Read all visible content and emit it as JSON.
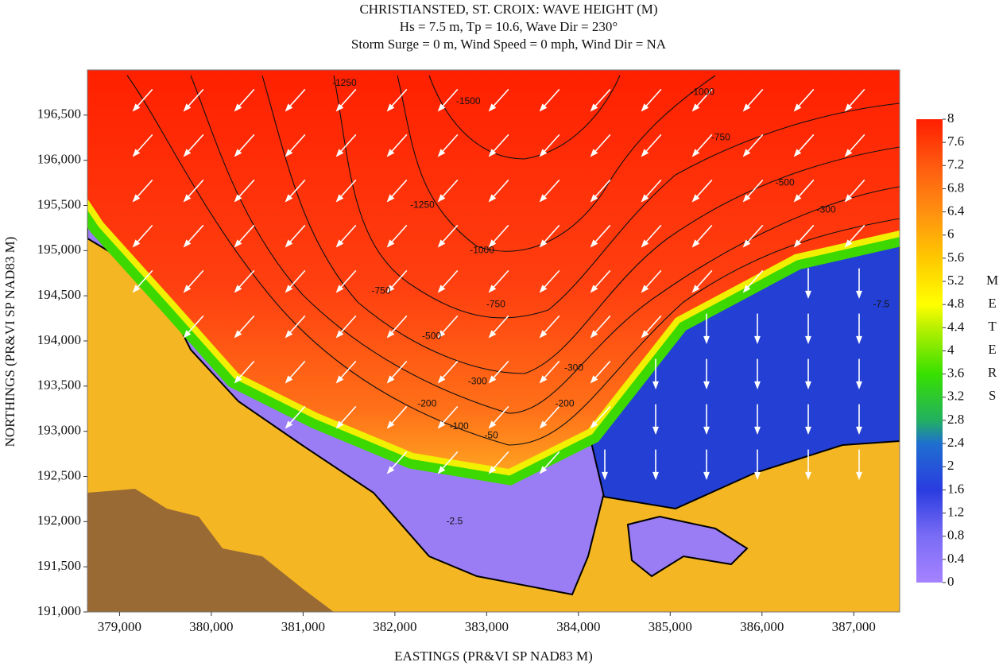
{
  "chart_data": {
    "type": "heatmap",
    "title": "CHRISTIANSTED, ST. CROIX: WAVE HEIGHT (M)",
    "subtitle": "Hs = 7.5 m, Tp = 10.6, Wave Dir = 230°",
    "subtitle2": "Storm Surge = 0 m, Wind Speed = 0 mph, Wind Dir = NA",
    "x_label": "EASTINGS (PR&VI SP NAD83 M)",
    "y_label": "NORTHINGS (PR&VI SP NAD83 M)",
    "xlim": [
      378650,
      387500
    ],
    "xticks": [
      {
        "value": 379000,
        "label": "379,000"
      },
      {
        "value": 380000,
        "label": "380,000"
      },
      {
        "value": 381000,
        "label": "381,000"
      },
      {
        "value": 382000,
        "label": "382,000"
      },
      {
        "value": 383000,
        "label": "383,000"
      },
      {
        "value": 384000,
        "label": "384,000"
      },
      {
        "value": 385000,
        "label": "385,000"
      },
      {
        "value": 386000,
        "label": "386,000"
      },
      {
        "value": 387000,
        "label": "387,000"
      }
    ],
    "ylim": [
      191000,
      197000
    ],
    "yticks": [
      {
        "value": 191000,
        "label": "191,000"
      },
      {
        "value": 191500,
        "label": "191,500"
      },
      {
        "value": 192000,
        "label": "192,000"
      },
      {
        "value": 192500,
        "label": "192,500"
      },
      {
        "value": 193000,
        "label": "193,000"
      },
      {
        "value": 193500,
        "label": "193,500"
      },
      {
        "value": 194000,
        "label": "194,000"
      },
      {
        "value": 194500,
        "label": "194,500"
      },
      {
        "value": 195000,
        "label": "195,000"
      },
      {
        "value": 195500,
        "label": "195,500"
      },
      {
        "value": 196000,
        "label": "196,000"
      },
      {
        "value": 196500,
        "label": "196,500"
      }
    ],
    "colorbar_label": "METERS",
    "clim": [
      0,
      8
    ],
    "cticks": [
      0,
      0.4,
      0.8,
      1.2,
      1.6,
      2,
      2.4,
      2.8,
      3.2,
      3.6,
      4,
      4.4,
      4.8,
      5.2,
      5.6,
      6,
      6.4,
      6.8,
      7.2,
      7.6,
      8
    ],
    "colorscale": [
      [
        0,
        "#a683ff"
      ],
      [
        0.8,
        "#7a6cf5"
      ],
      [
        1.6,
        "#2a3ce0"
      ],
      [
        2.4,
        "#1f6fd0"
      ],
      [
        2.8,
        "#22b060"
      ],
      [
        3.6,
        "#38e000"
      ],
      [
        4.4,
        "#b8f000"
      ],
      [
        4.8,
        "#ffff00"
      ],
      [
        5.6,
        "#ffc800"
      ],
      [
        6.4,
        "#ff9010"
      ],
      [
        7.2,
        "#ff5a10"
      ],
      [
        8,
        "#ff1e00"
      ]
    ],
    "contour_labels": [
      {
        "x": 382800,
        "y": 196650,
        "value": -1500
      },
      {
        "x": 381450,
        "y": 196850,
        "value": -1250
      },
      {
        "x": 382300,
        "y": 195500,
        "value": -1250
      },
      {
        "x": 382950,
        "y": 195000,
        "value": -1000
      },
      {
        "x": 381850,
        "y": 194550,
        "value": -750
      },
      {
        "x": 383100,
        "y": 194400,
        "value": -750
      },
      {
        "x": 382400,
        "y": 194050,
        "value": -500
      },
      {
        "x": 382900,
        "y": 193550,
        "value": -300
      },
      {
        "x": 382350,
        "y": 193300,
        "value": -200
      },
      {
        "x": 382700,
        "y": 193050,
        "value": -100
      },
      {
        "x": 383050,
        "y": 192950,
        "value": -50
      },
      {
        "x": 385350,
        "y": 196750,
        "value": -1000
      },
      {
        "x": 385550,
        "y": 196250,
        "value": -750
      },
      {
        "x": 386250,
        "y": 195750,
        "value": -500
      },
      {
        "x": 386700,
        "y": 195450,
        "value": -300
      },
      {
        "x": 387300,
        "y": 194400,
        "value": -7.5
      },
      {
        "x": 382650,
        "y": 192000,
        "value": -2.5
      },
      {
        "x": 383950,
        "y": 193700,
        "value": -300
      },
      {
        "x": 383850,
        "y": 193300,
        "value": -200
      }
    ]
  }
}
